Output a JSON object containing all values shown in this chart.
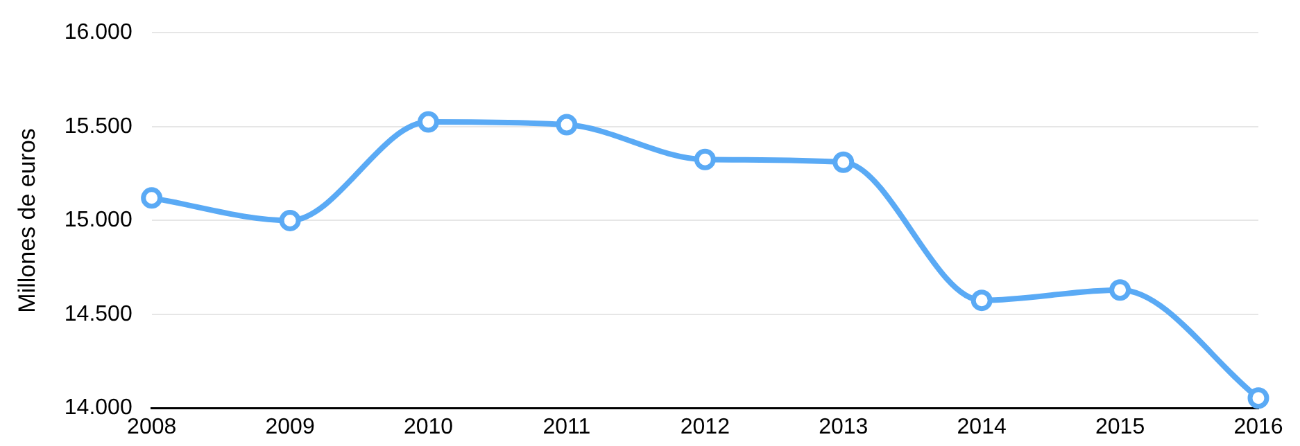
{
  "chart_data": {
    "type": "line",
    "ylabel": "Millones de euros",
    "categories": [
      "2008",
      "2009",
      "2010",
      "2011",
      "2012",
      "2013",
      "2014",
      "2015",
      "2016"
    ],
    "series": [
      {
        "color": "#5aaaf5",
        "values": [
          15120,
          15000,
          15525,
          15510,
          15325,
          15310,
          14575,
          14630,
          14055
        ]
      }
    ],
    "ylim": [
      14000,
      16000
    ],
    "yticks": [
      {
        "value": 14000,
        "label": "14.000"
      },
      {
        "value": 14500,
        "label": "14.500"
      },
      {
        "value": 15000,
        "label": "15.000"
      },
      {
        "value": 15500,
        "label": "15.500"
      },
      {
        "value": 16000,
        "label": "16.000"
      }
    ],
    "grid": "y",
    "legend": false,
    "marker": "circle",
    "line_style": "solid"
  }
}
